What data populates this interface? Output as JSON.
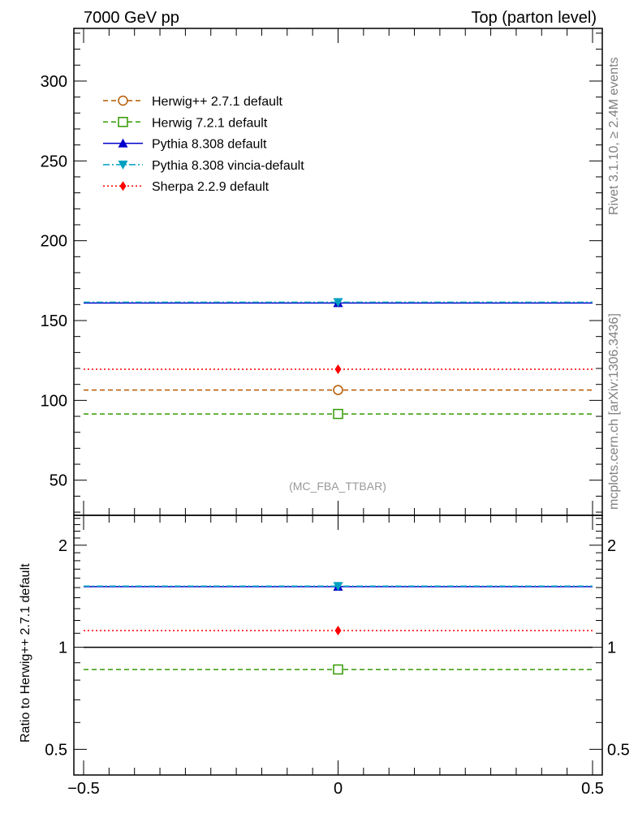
{
  "header": {
    "left": "7000 GeV pp",
    "right": "Top (parton level)"
  },
  "side": {
    "rivet": "Rivet 3.1.10, ≥ 2.4M events",
    "mcplots": "mcplots.cern.ch [arXiv:1306.3436]"
  },
  "annotation": "(MC_FBA_TTBAR)",
  "colors": {
    "herwigpp": "#b35900",
    "herwig7": "#339900",
    "pythia": "#0000cc",
    "vincia": "#00a0c0",
    "sherpa": "#ff0000"
  },
  "chart_data": [
    {
      "type": "line",
      "panel": "main",
      "xlim": [
        -0.5,
        0.5
      ],
      "ylim": [
        28,
        333
      ],
      "yticks": [
        {
          "v": 50,
          "label": "50"
        },
        {
          "v": 100,
          "label": "100"
        },
        {
          "v": 150,
          "label": "150"
        },
        {
          "v": 200,
          "label": "200"
        },
        {
          "v": 250,
          "label": "250"
        },
        {
          "v": 300,
          "label": "300"
        }
      ],
      "legend_position": "top-left",
      "series": [
        {
          "key": "herwigpp",
          "name": "Herwig++ 2.7.1 default",
          "x": [
            -0.5,
            0,
            0.5
          ],
          "y": [
            106.5,
            106.5,
            106.5
          ],
          "style": "dashed",
          "marker": "circle-open"
        },
        {
          "key": "herwig7",
          "name": "Herwig 7.2.1 default",
          "x": [
            -0.5,
            0,
            0.5
          ],
          "y": [
            91.5,
            91.5,
            91.5
          ],
          "style": "dashed",
          "marker": "square-open"
        },
        {
          "key": "pythia",
          "name": "Pythia 8.308 default",
          "x": [
            -0.5,
            0,
            0.5
          ],
          "y": [
            161,
            161,
            161
          ],
          "style": "solid",
          "marker": "triangle-up"
        },
        {
          "key": "vincia",
          "name": "Pythia 8.308 vincia-default",
          "x": [
            -0.5,
            0,
            0.5
          ],
          "y": [
            161.5,
            161.5,
            161.5
          ],
          "style": "dashdot",
          "marker": "triangle-down"
        },
        {
          "key": "sherpa",
          "name": "Sherpa 2.2.9 default",
          "x": [
            -0.5,
            0,
            0.5
          ],
          "y": [
            119.5,
            119.5,
            119.5
          ],
          "style": "dotted",
          "marker": "diamond"
        }
      ]
    },
    {
      "type": "line",
      "panel": "ratio",
      "ylabel": "Ratio to Herwig++ 2.7.1 default",
      "xlim": [
        -0.5,
        0.5
      ],
      "ylim": [
        0.42,
        2.45
      ],
      "scale": "log",
      "xticks": [
        {
          "v": -0.5,
          "label": "−0.5"
        },
        {
          "v": 0,
          "label": "0"
        },
        {
          "v": 0.5,
          "label": "0.5"
        }
      ],
      "yticks": [
        {
          "v": 0.5,
          "label": "0.5"
        },
        {
          "v": 1,
          "label": "1"
        },
        {
          "v": 2,
          "label": "2"
        }
      ],
      "series": [
        {
          "key": "herwigpp",
          "x": [
            -0.5,
            0.5
          ],
          "y": [
            1.0,
            1.0
          ],
          "style": "solid",
          "marker": "none"
        },
        {
          "key": "herwig7",
          "x": [
            -0.5,
            0,
            0.5
          ],
          "y": [
            0.86,
            0.86,
            0.86
          ],
          "style": "dashed",
          "marker": "square-open"
        },
        {
          "key": "pythia",
          "x": [
            -0.5,
            0,
            0.5
          ],
          "y": [
            1.51,
            1.51,
            1.51
          ],
          "style": "solid",
          "marker": "triangle-up"
        },
        {
          "key": "vincia",
          "x": [
            -0.5,
            0,
            0.5
          ],
          "y": [
            1.515,
            1.515,
            1.515
          ],
          "style": "dashdot",
          "marker": "triangle-down"
        },
        {
          "key": "sherpa",
          "x": [
            -0.5,
            0,
            0.5
          ],
          "y": [
            1.12,
            1.12,
            1.12
          ],
          "style": "dotted",
          "marker": "diamond"
        }
      ]
    }
  ]
}
